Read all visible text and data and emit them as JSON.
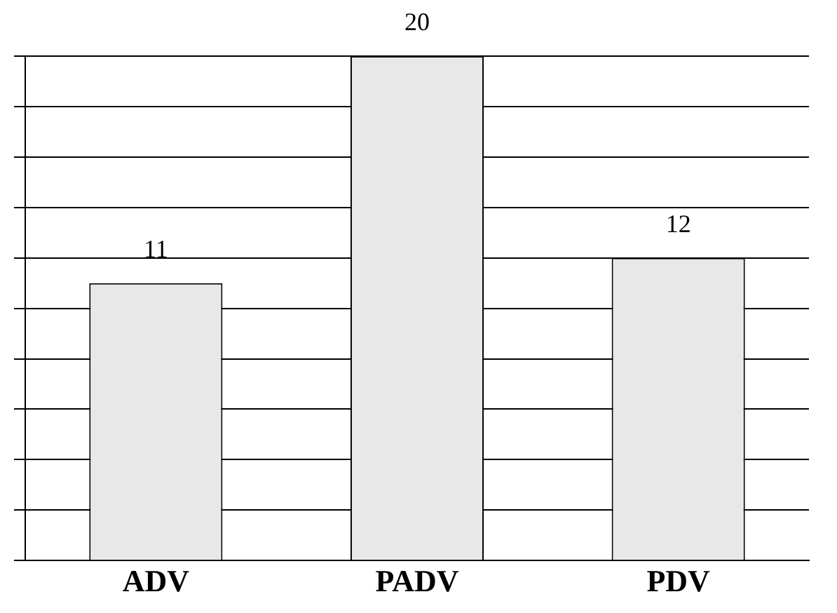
{
  "chart_data": {
    "type": "bar",
    "categories": [
      "ADV",
      "PADV",
      "PDV"
    ],
    "values": [
      11,
      20,
      12
    ],
    "color": "#e8e8e8",
    "ylim": [
      0,
      20
    ],
    "yticks": [
      {
        "value": 0,
        "label": null
      },
      {
        "value": 2,
        "label": null
      },
      {
        "value": 4,
        "label": null
      },
      {
        "value": 6,
        "label": null
      },
      {
        "value": 8,
        "label": null
      },
      {
        "value": 10,
        "label": null
      },
      {
        "value": 12,
        "label": null
      },
      {
        "value": 14,
        "label": null
      },
      {
        "value": 16,
        "label": null
      },
      {
        "value": 18,
        "label": null
      },
      {
        "value": 20,
        "label": null
      }
    ],
    "grid": "y",
    "tick_labels": "x",
    "data_labels": true,
    "legend": false
  }
}
